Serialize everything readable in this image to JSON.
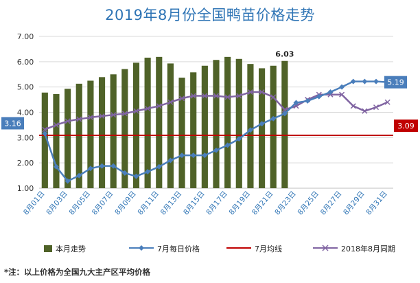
{
  "title": "2019年8月份全国鸭苗价格走势",
  "footnote": "*注：以上价格为全国九大主产区平均价格",
  "colors": {
    "bars": "#4f6228",
    "july_daily": "#4a7ebb",
    "july_avg": "#c00000",
    "last_year": "#8064a2",
    "title": "#2e74b5"
  },
  "chart_data": {
    "type": "bar",
    "x_tick_labels": [
      "8月01日",
      "8月03日",
      "8月05日",
      "8月07日",
      "8月09日",
      "8月11日",
      "8月13日",
      "8月15日",
      "8月17日",
      "8月19日",
      "8月21日",
      "8月23日",
      "8月25日",
      "8月27日",
      "8月29日",
      "8月31日"
    ],
    "ylim": [
      1.0,
      7.0
    ],
    "yticks": [
      "1.00",
      "2.00",
      "3.00",
      "4.00",
      "5.00",
      "6.00",
      "7.00"
    ],
    "grid": "horizontal",
    "legend_position": "bottom",
    "series": [
      {
        "name": "本月走势",
        "type": "bar",
        "values": [
          4.78,
          4.72,
          4.93,
          5.13,
          5.25,
          5.39,
          5.5,
          5.71,
          5.96,
          6.16,
          6.19,
          5.93,
          5.37,
          5.58,
          5.84,
          6.07,
          6.19,
          6.11,
          5.91,
          5.74,
          5.84,
          6.03
        ]
      },
      {
        "name": "7月每日价格",
        "type": "line",
        "marker": "diamond",
        "values": [
          3.16,
          1.85,
          1.28,
          1.5,
          1.78,
          1.88,
          1.88,
          1.6,
          1.47,
          1.65,
          1.85,
          2.1,
          2.3,
          2.3,
          2.3,
          2.5,
          2.7,
          2.95,
          3.3,
          3.55,
          3.75,
          3.95,
          4.38,
          4.45,
          4.62,
          4.8,
          5.0,
          5.22,
          5.22,
          5.22,
          5.19
        ]
      },
      {
        "name": "7月均线",
        "type": "line",
        "values": [
          3.09
        ]
      },
      {
        "name": "2018年8月同期",
        "type": "line",
        "marker": "x",
        "values": [
          3.32,
          3.5,
          3.65,
          3.73,
          3.8,
          3.85,
          3.9,
          3.95,
          4.05,
          4.15,
          4.25,
          4.4,
          4.55,
          4.65,
          4.65,
          4.65,
          4.6,
          4.65,
          4.8,
          4.8,
          4.6,
          4.1,
          4.25,
          4.5,
          4.7,
          4.7,
          4.7,
          4.25,
          4.05,
          4.2,
          4.4
        ]
      }
    ],
    "annotations": {
      "bar_last": "6.03",
      "july_first": "3.16",
      "july_last": "5.19",
      "july_avg": "3.09"
    }
  }
}
